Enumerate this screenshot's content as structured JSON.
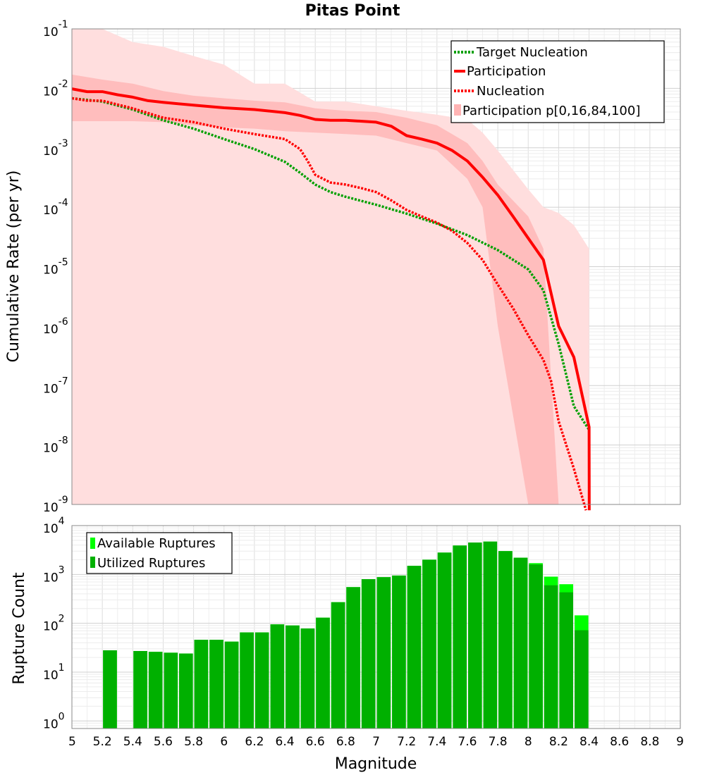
{
  "chart_data": [
    {
      "type": "line",
      "title": "Pitas Point",
      "xlabel": "",
      "ylabel": "Cumulative Rate (per yr)",
      "xlim": [
        5,
        9
      ],
      "ylim": [
        1e-09,
        0.1
      ],
      "yscale": "log",
      "ytick_labels": [
        {
          "value": 1e-09,
          "base": "10",
          "exp": "-9"
        },
        {
          "value": 1e-08,
          "base": "10",
          "exp": "-8"
        },
        {
          "value": 1e-07,
          "base": "10",
          "exp": "-7"
        },
        {
          "value": 1e-06,
          "base": "10",
          "exp": "-6"
        },
        {
          "value": 1e-05,
          "base": "10",
          "exp": "-5"
        },
        {
          "value": 0.0001,
          "base": "10",
          "exp": "-4"
        },
        {
          "value": 0.001,
          "base": "10",
          "exp": "-3"
        },
        {
          "value": 0.01,
          "base": "10",
          "exp": "-2"
        },
        {
          "value": 0.1,
          "base": "10",
          "exp": "-1"
        }
      ],
      "grid": true,
      "legend_position": "top-right",
      "series": [
        {
          "name": "Target Nucleation",
          "style": "dotted",
          "color": "#00a000",
          "x": [
            5.0,
            5.2,
            5.4,
            5.6,
            5.8,
            6.0,
            6.2,
            6.4,
            6.5,
            6.6,
            6.7,
            6.8,
            7.0,
            7.2,
            7.4,
            7.6,
            7.8,
            8.0,
            8.1,
            8.2,
            8.3,
            8.4
          ],
          "y": [
            0.0068,
            0.006,
            0.0044,
            0.0029,
            0.0021,
            0.0014,
            0.00095,
            0.00058,
            0.00038,
            0.00024,
            0.00018,
            0.00015,
            0.00011,
            7.8e-05,
            5.3e-05,
            3.4e-05,
            1.9e-05,
            9e-06,
            4e-06,
            5e-07,
            4.5e-08,
            1.8e-08
          ]
        },
        {
          "name": "Participation",
          "style": "solid",
          "color": "#ff0000",
          "x": [
            5.0,
            5.1,
            5.2,
            5.3,
            5.4,
            5.5,
            5.6,
            5.8,
            6.0,
            6.2,
            6.4,
            6.5,
            6.6,
            6.7,
            6.8,
            6.9,
            7.0,
            7.1,
            7.2,
            7.3,
            7.4,
            7.5,
            7.6,
            7.7,
            7.8,
            7.9,
            8.0,
            8.1,
            8.2,
            8.3,
            8.4,
            8.401
          ],
          "y": [
            0.0098,
            0.0088,
            0.0088,
            0.0078,
            0.0071,
            0.0062,
            0.0058,
            0.0052,
            0.0047,
            0.0044,
            0.0039,
            0.0035,
            0.003,
            0.0029,
            0.0029,
            0.0028,
            0.0027,
            0.0023,
            0.0016,
            0.0014,
            0.0012,
            0.0009,
            0.0006,
            0.00032,
            0.00016,
            7e-05,
            3e-05,
            1.3e-05,
            1e-06,
            3e-07,
            2e-08,
            8e-10
          ]
        },
        {
          "name": "Nucleation",
          "style": "dotted",
          "color": "#ff0000",
          "x": [
            5.0,
            5.1,
            5.2,
            5.4,
            5.6,
            5.8,
            6.0,
            6.2,
            6.4,
            6.5,
            6.55,
            6.6,
            6.7,
            6.8,
            6.9,
            7.0,
            7.1,
            7.2,
            7.3,
            7.4,
            7.5,
            7.6,
            7.7,
            7.8,
            7.9,
            8.0,
            8.1,
            8.15,
            8.2,
            8.3,
            8.38
          ],
          "y": [
            0.0068,
            0.0062,
            0.0062,
            0.0046,
            0.0032,
            0.0027,
            0.0021,
            0.0017,
            0.0014,
            0.00095,
            0.0006,
            0.00035,
            0.00026,
            0.00024,
            0.00021,
            0.00018,
            0.00013,
            9e-05,
            7e-05,
            5.5e-05,
            4e-05,
            2.5e-05,
            1.3e-05,
            5e-06,
            2e-06,
            7e-07,
            2.7e-07,
            1.2e-07,
            2.5e-08,
            4e-09,
            8e-10
          ]
        },
        {
          "name": "Participation p[0,16,84,100]",
          "style": "band",
          "color": "#ffb4b4",
          "x": [
            5.0,
            5.2,
            5.4,
            5.6,
            5.8,
            6.0,
            6.2,
            6.4,
            6.6,
            6.8,
            7.0,
            7.2,
            7.4,
            7.6,
            7.7,
            7.8,
            8.0,
            8.1,
            8.2,
            8.3,
            8.4
          ],
          "p0": [
            1e-09,
            1e-09,
            1e-09,
            1e-09,
            1e-09,
            1e-09,
            1e-09,
            1e-09,
            1e-09,
            1e-09,
            1e-09,
            1e-09,
            1e-09,
            1e-09,
            1e-09,
            1e-09,
            1e-09,
            1e-09,
            1e-09,
            1e-09,
            1e-09
          ],
          "p16": [
            0.0028,
            0.0028,
            0.0028,
            0.0027,
            0.0024,
            0.0022,
            0.0021,
            0.0019,
            0.0018,
            0.0017,
            0.0016,
            0.0012,
            0.0009,
            0.0003,
            0.0001,
            1e-06,
            1e-09,
            1e-09,
            1e-09,
            1e-09,
            1e-09
          ],
          "p84": [
            0.017,
            0.014,
            0.012,
            0.009,
            0.0075,
            0.0068,
            0.0062,
            0.0058,
            0.0046,
            0.0042,
            0.004,
            0.0032,
            0.0024,
            0.0012,
            0.0006,
            0.00024,
            7e-05,
            2e-05,
            1e-09,
            1e-09,
            1e-09
          ],
          "p100": [
            0.13,
            0.12,
            0.06,
            0.05,
            0.035,
            0.025,
            0.012,
            0.012,
            0.006,
            0.006,
            0.005,
            0.0042,
            0.0036,
            0.003,
            0.0018,
            0.0009,
            0.0002,
            0.0001,
            8e-05,
            5e-05,
            2e-05
          ]
        }
      ]
    },
    {
      "type": "bar",
      "title": "",
      "xlabel": "Magnitude",
      "ylabel": "Rupture Count",
      "xlim": [
        5,
        9
      ],
      "ylim": [
        0.7,
        10000
      ],
      "yscale": "log",
      "bin_width": 0.1,
      "ytick_labels": [
        {
          "value": 1,
          "base": "10",
          "exp": "0"
        },
        {
          "value": 10,
          "base": "10",
          "exp": "1"
        },
        {
          "value": 100,
          "base": "10",
          "exp": "2"
        },
        {
          "value": 1000,
          "base": "10",
          "exp": "3"
        },
        {
          "value": 10000,
          "base": "10",
          "exp": "4"
        }
      ],
      "xtick_labels": [
        "5",
        "5.2",
        "5.4",
        "5.6",
        "5.8",
        "6",
        "6.2",
        "6.4",
        "6.6",
        "6.8",
        "7",
        "7.2",
        "7.4",
        "7.6",
        "7.8",
        "8",
        "8.2",
        "8.4",
        "8.6",
        "8.8",
        "9"
      ],
      "grid": true,
      "legend_position": "top-left",
      "x": [
        5.25,
        5.45,
        5.55,
        5.65,
        5.75,
        5.85,
        5.95,
        6.05,
        6.15,
        6.25,
        6.35,
        6.45,
        6.55,
        6.65,
        6.75,
        6.85,
        6.95,
        7.05,
        7.15,
        7.25,
        7.35,
        7.45,
        7.55,
        7.65,
        7.75,
        7.85,
        7.95,
        8.05,
        8.15,
        8.25,
        8.35
      ],
      "series": [
        {
          "name": "Available Ruptures",
          "color": "#00ff00",
          "values": [
            28,
            27,
            26,
            25,
            24,
            46,
            46,
            42,
            65,
            65,
            95,
            90,
            78,
            130,
            270,
            550,
            800,
            880,
            950,
            1500,
            2000,
            2800,
            3900,
            4500,
            4700,
            3000,
            2200,
            1700,
            900,
            630,
            145
          ]
        },
        {
          "name": "Utilized Ruptures",
          "color": "#00b000",
          "values": [
            28,
            27,
            26,
            25,
            24,
            46,
            46,
            42,
            65,
            65,
            95,
            90,
            78,
            130,
            270,
            550,
            800,
            880,
            950,
            1500,
            2000,
            2800,
            3900,
            4500,
            4700,
            3000,
            2200,
            1600,
            600,
            430,
            72
          ]
        }
      ]
    }
  ]
}
